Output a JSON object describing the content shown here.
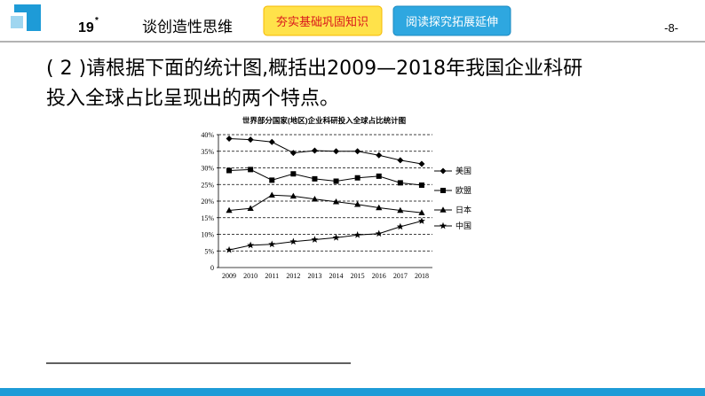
{
  "header": {
    "number": "19",
    "mark": "*",
    "title": "谈创造性思维",
    "button_1": "夯实基础巩固知识",
    "button_2": "阅读探究拓展延伸",
    "page": "-8-"
  },
  "question": {
    "line_1": "( 2 )请根据下面的统计图,概括出2009—2018年我国企业科研",
    "line_2": "投入全球占比呈现出的两个特点。"
  },
  "chart_data": {
    "type": "line",
    "title": "世界部分国家(地区)企业科研投入全球占比统计图",
    "categories": [
      "2009",
      "2010",
      "2011",
      "2012",
      "2013",
      "2014",
      "2015",
      "2016",
      "2017",
      "2018"
    ],
    "series": [
      {
        "name": "美国",
        "color": "#000000",
        "marker": "diamond",
        "values": [
          38.8,
          38.5,
          37.8,
          34.5,
          35.2,
          35.0,
          35.0,
          33.8,
          32.3,
          31.2
        ]
      },
      {
        "name": "欧盟",
        "color": "#000000",
        "marker": "square",
        "values": [
          29.2,
          29.5,
          26.3,
          28.2,
          26.7,
          26.0,
          27.0,
          27.5,
          25.5,
          24.8
        ]
      },
      {
        "name": "日本",
        "color": "#000000",
        "marker": "triangle",
        "values": [
          17.2,
          17.8,
          21.8,
          21.5,
          20.6,
          19.8,
          19.0,
          18.0,
          17.2,
          16.5
        ]
      },
      {
        "name": "中国",
        "color": "#000000",
        "marker": "star",
        "values": [
          5.3,
          6.7,
          7.0,
          7.8,
          8.4,
          9.0,
          9.8,
          10.2,
          12.3,
          14.0
        ]
      }
    ],
    "ylim": [
      0,
      40
    ],
    "yticks": [
      0,
      {
        "value": 5,
        "label": "5%"
      },
      {
        "value": 10,
        "label": "10%"
      },
      {
        "value": 15,
        "label": "15%"
      },
      {
        "value": 20,
        "label": "20%"
      },
      {
        "value": 25,
        "label": "25%"
      },
      {
        "value": 30,
        "label": "30%"
      },
      {
        "value": 35,
        "label": "35%"
      },
      {
        "value": 40,
        "label": "40%"
      }
    ],
    "grid": true
  }
}
